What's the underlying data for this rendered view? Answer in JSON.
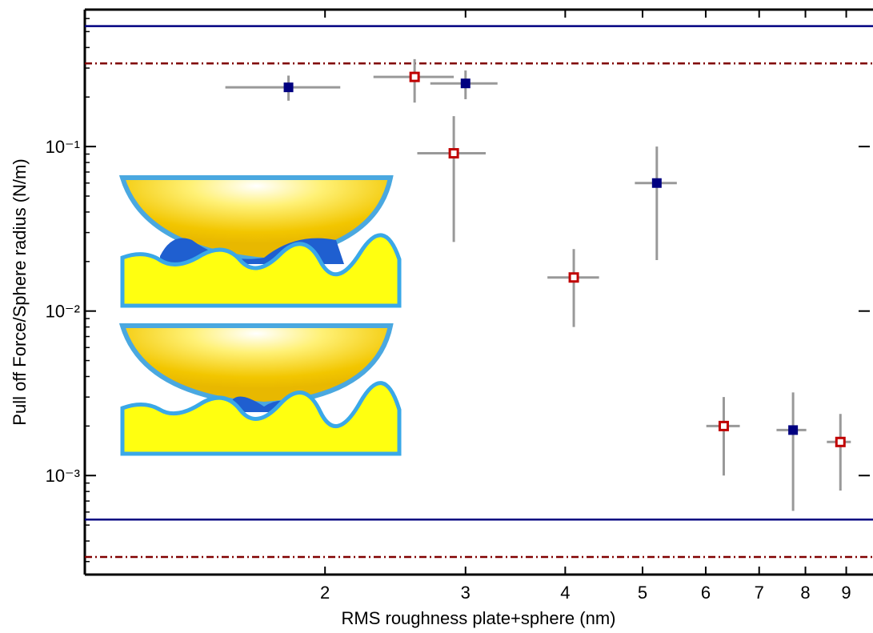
{
  "chart_data": {
    "type": "scatter",
    "x_label": "RMS roughness plate+sphere (nm)",
    "y_label": "Pull off Force/Sphere radius (N/m)",
    "log_x": true,
    "log_y": true,
    "xlim": [
      1,
      9.7
    ],
    "ylim": [
      0.00025,
      0.68
    ],
    "xticks": [
      2,
      3,
      4,
      5,
      6,
      7,
      8,
      9
    ],
    "yticks": [
      {
        "value": 0.1,
        "label": "10⁻¹"
      },
      {
        "value": 0.01,
        "label": "10⁻²"
      },
      {
        "value": 0.001,
        "label": "10⁻³"
      }
    ],
    "error_color": "#999999",
    "hlines": [
      {
        "value": 0.54,
        "color": "#000080",
        "style": "solid"
      },
      {
        "value": 0.32,
        "color": "#800000",
        "style": "dashdot"
      },
      {
        "value": 0.00054,
        "color": "#000080",
        "style": "solid"
      },
      {
        "value": 0.00032,
        "color": "#800000",
        "style": "dashdot"
      }
    ],
    "series": [
      {
        "color": "#000080",
        "marker": "filled",
        "x": [
          1.8,
          3.0,
          5.21,
          7.72
        ],
        "values": [
          0.229,
          0.242,
          0.06,
          0.00189
        ],
        "x_low": [
          1.5,
          2.71,
          4.89,
          7.36
        ],
        "x_high": [
          2.09,
          3.29,
          5.52,
          8.02
        ],
        "y_low": [
          0.19,
          0.194,
          0.0204,
          0.00061
        ],
        "y_high": [
          0.27,
          0.29,
          0.1,
          0.0032
        ]
      },
      {
        "color": "#c00000",
        "marker": "open",
        "x": [
          2.59,
          2.9,
          4.1,
          6.32,
          8.85
        ],
        "values": [
          0.265,
          0.091,
          0.016,
          0.002,
          0.0016
        ],
        "x_low": [
          2.3,
          2.61,
          3.8,
          6.01,
          8.51
        ],
        "x_high": [
          2.9,
          3.18,
          4.41,
          6.62,
          9.12
        ],
        "y_low": [
          0.185,
          0.0263,
          0.008,
          0.001,
          0.00081
        ],
        "y_high": [
          0.34,
          0.153,
          0.0238,
          0.003,
          0.00237
        ]
      }
    ]
  }
}
